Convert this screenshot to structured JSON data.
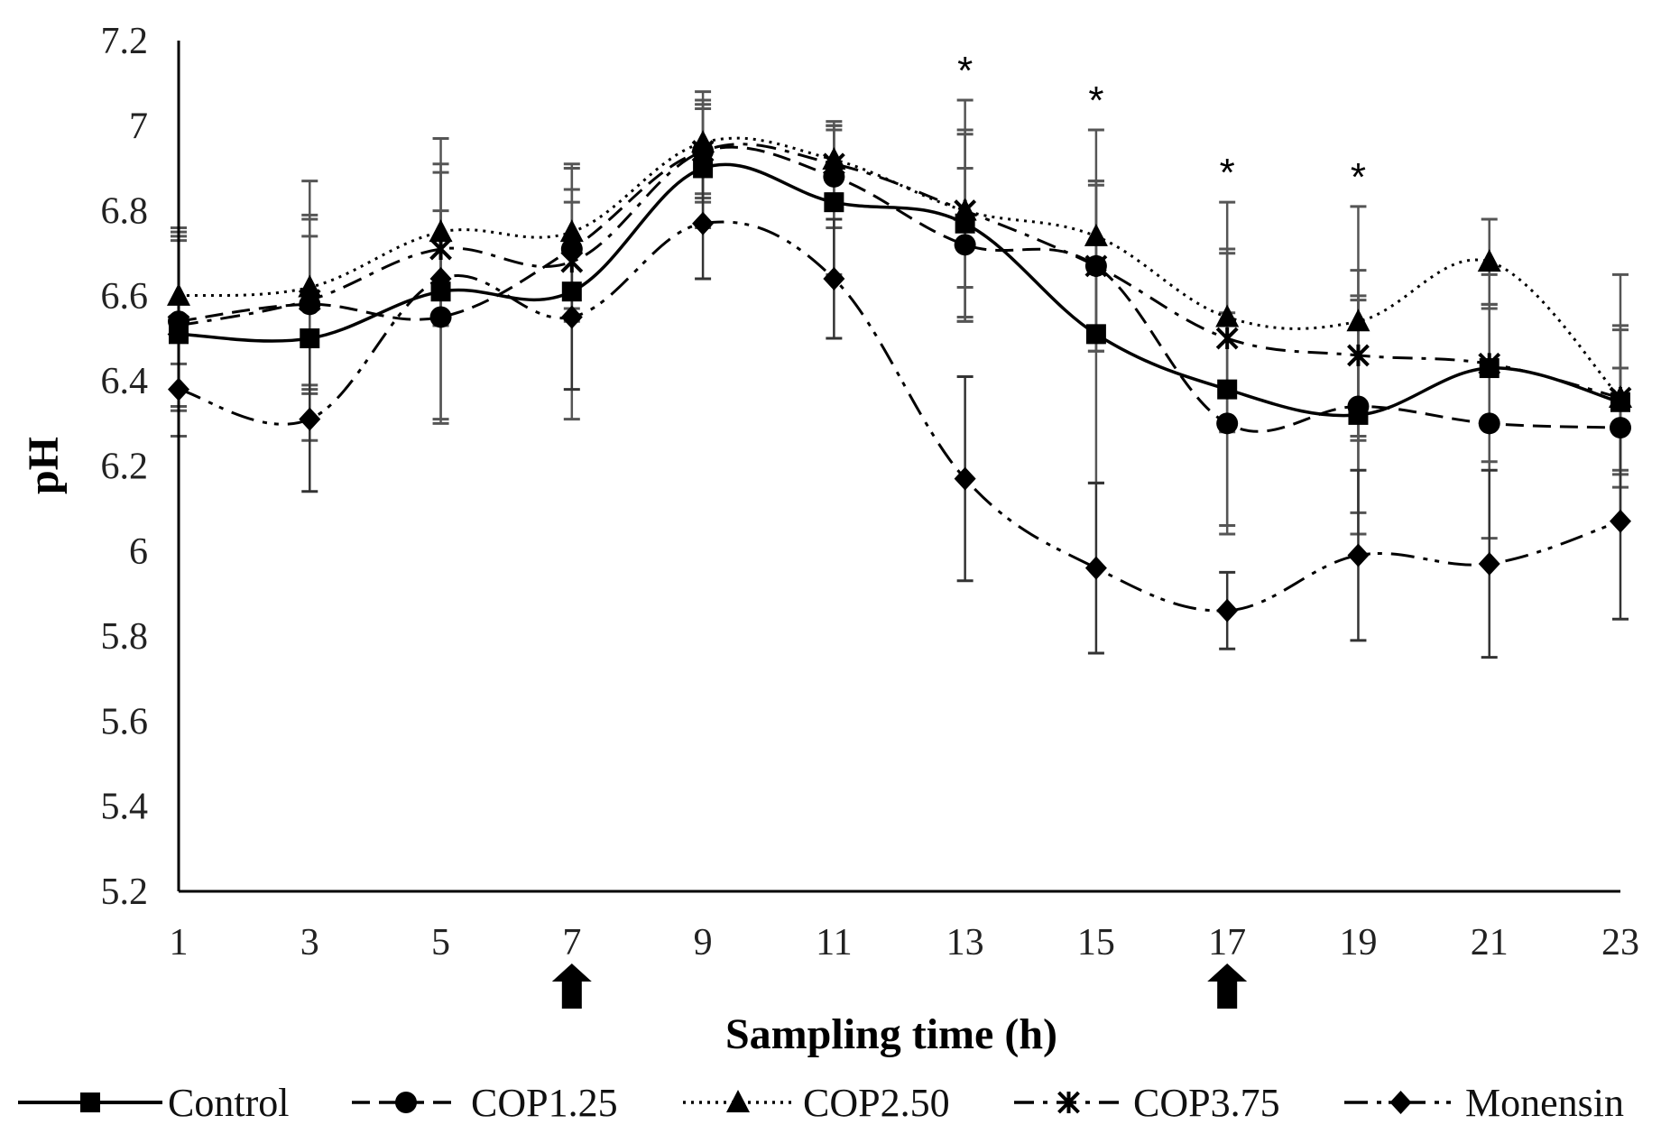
{
  "chart_data": {
    "type": "line",
    "title": "",
    "xlabel": "Sampling time (h)",
    "ylabel": "pH",
    "x": [
      1,
      3,
      5,
      7,
      9,
      11,
      13,
      15,
      17,
      19,
      21,
      23
    ],
    "x_ticks": [
      "1",
      "3",
      "5",
      "7",
      "9",
      "11",
      "13",
      "15",
      "17",
      "19",
      "21",
      "23"
    ],
    "y_ticks": [
      "5.2",
      "5.4",
      "5.6",
      "5.8",
      "6",
      "6.2",
      "6.4",
      "6.6",
      "6.8",
      "7",
      "7.2"
    ],
    "ylim": [
      5.2,
      7.2
    ],
    "grid": false,
    "legend_position": "bottom",
    "feeding_arrows_at_x": [
      7,
      17
    ],
    "significance_marker": "*",
    "significance_at_x": [
      13,
      15,
      17,
      19
    ],
    "series": [
      {
        "name": "Control",
        "marker": "square",
        "dash": "solid",
        "color": "#000000",
        "errbar_color": "#555555",
        "values": [
          6.51,
          6.5,
          6.61,
          6.61,
          6.9,
          6.82,
          6.77,
          6.51,
          6.38,
          6.32,
          6.43,
          6.35
        ],
        "errors": [
          0.24,
          0.24,
          0.3,
          0.3,
          0.14,
          0.17,
          0.22,
          0.35,
          0.32,
          0.28,
          0.22,
          0.17
        ]
      },
      {
        "name": "COP1.25",
        "marker": "circle",
        "dash": "dashed",
        "color": "#000000",
        "errbar_color": "#555555",
        "values": [
          6.54,
          6.58,
          6.55,
          6.71,
          6.94,
          6.88,
          6.72,
          6.67,
          6.3,
          6.34,
          6.3,
          6.29
        ],
        "errors": [
          0.2,
          0.2,
          0.25,
          0.14,
          0.12,
          0.12,
          0.18,
          0.2,
          0.26,
          0.25,
          0.27,
          0.14
        ]
      },
      {
        "name": "COP2.50",
        "marker": "triangle",
        "dash": "dotted",
        "color": "#000000",
        "errbar_color": "#555555",
        "values": [
          6.6,
          6.62,
          6.75,
          6.75,
          6.96,
          6.92,
          6.8,
          6.74,
          6.55,
          6.54,
          6.68,
          6.36
        ],
        "errors": [
          0.16,
          0.25,
          0.22,
          0.15,
          0.12,
          0.08,
          0.26,
          0.25,
          0.27,
          0.27,
          0.1,
          0.29
        ]
      },
      {
        "name": "COP3.75",
        "marker": "asterisk",
        "dash": "dashdot",
        "color": "#000000",
        "errbar_color": "#555555",
        "values": [
          6.53,
          6.59,
          6.71,
          6.68,
          6.94,
          6.91,
          6.8,
          6.67,
          6.5,
          6.46,
          6.44,
          6.36
        ],
        "errors": [
          0.2,
          0.2,
          0.18,
          0.14,
          0.11,
          0.1,
          0.18,
          0.2,
          0.21,
          0.2,
          0.14,
          0.17
        ]
      },
      {
        "name": "Monensin",
        "marker": "diamond",
        "dash": "dashdotdot",
        "color": "#000000",
        "errbar_color": "#333333",
        "values": [
          6.38,
          6.31,
          6.64,
          6.55,
          6.77,
          6.64,
          6.17,
          5.96,
          5.86,
          5.99,
          5.97,
          6.07
        ],
        "errors": [
          0.0,
          0.17,
          0.0,
          0.17,
          0.13,
          0.14,
          0.24,
          0.2,
          0.09,
          0.2,
          0.22,
          0.23
        ]
      }
    ]
  }
}
